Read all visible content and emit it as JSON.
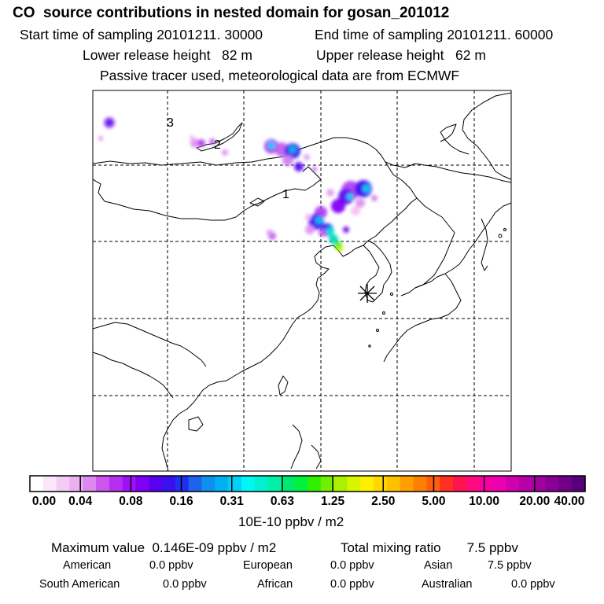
{
  "header": {
    "title": "CO  source contributions in nested domain for gosan_201012",
    "start_time": "Start time of sampling 20101211. 30000",
    "end_time": "End time of sampling 20101211. 60000",
    "lower_height": "Lower release height   82 m",
    "upper_height": "Upper release height   62 m",
    "tracer_note": "Passive tracer used, meteorological data are from ECMWF"
  },
  "map": {
    "grid_labels": [
      "1",
      "2",
      "3"
    ],
    "station_marker": "receptor-asterisk-icon"
  },
  "colorbar": {
    "ticks": [
      "0.00",
      "0.04",
      "0.08",
      "0.16",
      "0.31",
      "0.63",
      "1.25",
      "2.50",
      "5.00",
      "10.00",
      "20.00",
      "40.00"
    ],
    "units": "10E-10 ppbv / m2",
    "colors": [
      "#ffffff",
      "#fbe6fb",
      "#f3ccf5",
      "#eab1f0",
      "#dd88ee",
      "#cc55ee",
      "#b82ef0",
      "#9f10f5",
      "#8000f5",
      "#5a00f0",
      "#3a10ee",
      "#2030f0",
      "#1c63ee",
      "#0e90f0",
      "#00b0f5",
      "#00d0f8",
      "#00f5f5",
      "#00f0d0",
      "#00f0a5",
      "#00e870",
      "#00f040",
      "#30f000",
      "#70f000",
      "#aaf000",
      "#d8f500",
      "#fff000",
      "#ffd800",
      "#ffc000",
      "#ffa000",
      "#ff8000",
      "#ff5e10",
      "#ff3020",
      "#ff1450",
      "#ff0880",
      "#f800a0",
      "#ec00b0",
      "#d000b0",
      "#b800a8",
      "#a0009e",
      "#880095",
      "#700088",
      "#58007a"
    ]
  },
  "footer": {
    "max_value": "Maximum value  0.146E-09 ppbv / m2",
    "total_mixing": "Total mixing ratio       7.5 ppbv",
    "rows": [
      [
        {
          "name": "American",
          "value": "0.0 ppbv"
        },
        {
          "name": "European",
          "value": "0.0 ppbv"
        },
        {
          "name": "Asian",
          "value": "7.5 ppbv"
        }
      ],
      [
        {
          "name": "South American",
          "value": "0.0 ppbv"
        },
        {
          "name": "African",
          "value": "0.0 ppbv"
        },
        {
          "name": "Australian",
          "value": "0.0 ppbv"
        }
      ]
    ]
  }
}
